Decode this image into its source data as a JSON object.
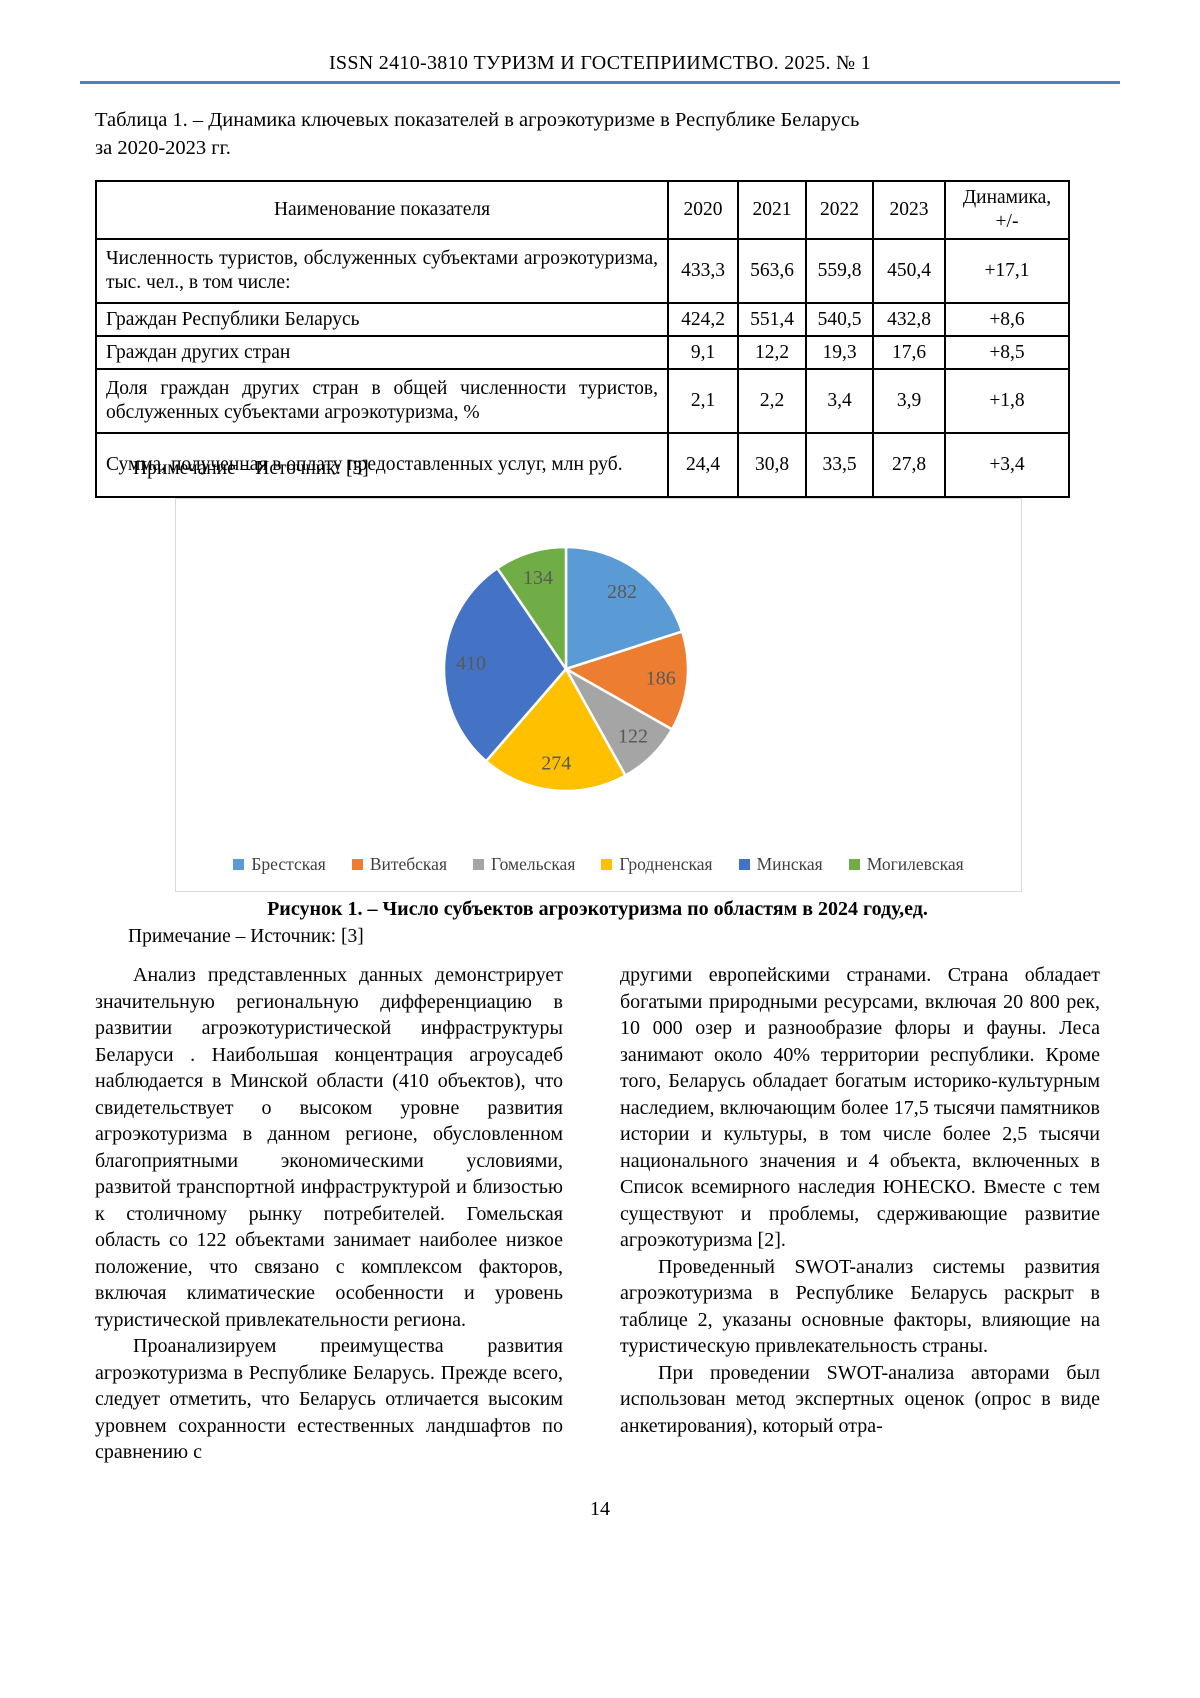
{
  "page": {
    "header": "ISSN 2410-3810 ТУРИЗМ И ГОСТЕПРИИМСТВО. 2025. № 1",
    "page_number": "14",
    "accent_rule_color": "#4F81BD"
  },
  "table": {
    "caption_line1": "Таблица 1. – Динамика ключевых показателей в агроэкотуризме в Республике Беларусь",
    "caption_line2": "за 2020-2023 гг.",
    "note": "Примечание – Источник: [3]",
    "col_headers": [
      "Наименование показателя",
      "2020",
      "2021",
      "2022",
      "2023",
      "Динамика, +/-"
    ],
    "rows": [
      {
        "name": "Численность туристов, обслуженных субъектами агроэкотуризма, тыс. чел., в том числе:",
        "v2020": "433,3",
        "v2021": "563,6",
        "v2022": "559,8",
        "v2023": "450,4",
        "dyn": "+17,1"
      },
      {
        "name": "Граждан Республики Беларусь",
        "v2020": "424,2",
        "v2021": "551,4",
        "v2022": "540,5",
        "v2023": "432,8",
        "dyn": "+8,6"
      },
      {
        "name": "Граждан других стран",
        "v2020": "9,1",
        "v2021": "12,2",
        "v2022": "19,3",
        "v2023": "17,6",
        "dyn": "+8,5"
      },
      {
        "name": "Доля граждан других стран в общей численности туристов, обслуженных субъектами агроэкотуризма, %",
        "v2020": "2,1",
        "v2021": "2,2",
        "v2022": "3,4",
        "v2023": "3,9",
        "dyn": "+1,8"
      },
      {
        "name": "Сумма, полученная в оплату предоставленных услуг, млн руб.",
        "v2020": "24,4",
        "v2021": "30,8",
        "v2022": "33,5",
        "v2023": "27,8",
        "dyn": "+3,4"
      }
    ]
  },
  "figure": {
    "caption": "Рисунок 1. – Число субъектов агроэкотуризма по областям в 2024 году,ед.",
    "note": "Примечание – Источник: [3]"
  },
  "chart_data": {
    "type": "pie",
    "title": "Число субъектов агроэкотуризма по областям в 2024 году, ед.",
    "categories": [
      "Брестская",
      "Витебская",
      "Гомельская",
      "Гродненская",
      "Минская",
      "Могилевская"
    ],
    "values": [
      282,
      186,
      122,
      274,
      410,
      134
    ],
    "data_labels": [
      "282",
      "186",
      "122",
      "274",
      "410",
      "134"
    ],
    "colors": [
      "#5B9BD5",
      "#ED7D31",
      "#A5A5A5",
      "#FFC000",
      "#4472C4",
      "#70AD47"
    ],
    "start_angle_deg": 0,
    "direction": "clockwise",
    "legend_position": "bottom",
    "label_color": "#595959",
    "slice_border_color": "#FFFFFF"
  },
  "body": {
    "left": [
      "Анализ представленных данных демонстрирует значительную региональную дифференциацию в развитии агроэкотуристической инфраструктуры Беларуси . Наибольшая концентрация агроусадеб наблюдается в Минской области (410 объектов), что свидетельствует о высоком уровне развития агроэкотуризма в данном регионе, обусловленном благоприятными экономическими условиями, развитой транспортной инфраструктурой и близостью к столичному рынку потребителей. Гомельская область со 122 объектами занимает наиболее низкое положение, что связано с комплексом факторов, включая климатические особенности и уровень туристической привлекательности региона.",
      "Проанализируем преимущества развития агроэкотуризма в Республике Беларусь. Прежде всего, следует отметить, что Беларусь отличается высоким уровнем сохранности естественных ландшафтов по сравнению с"
    ],
    "right": [
      "другими европейскими странами. Страна обладает богатыми природными ресурсами, включая 20 800 рек, 10 000 озер и разнообразие флоры и фауны. Леса занимают около 40% территории республики. Кроме того, Беларусь обладает богатым историко-культурным наследием, включающим более 17,5 тысячи памятников истории и культуры, в том числе более 2,5 тысячи национального значения и 4 объекта, включенных в Список всемирного наследия ЮНЕСКО. Вместе с тем существуют и проблемы, сдерживающие развитие агроэкотуризма [2].",
      "Проведенный SWOT-анализ системы развития агроэкотуризма в Республике Беларусь раскрыт в таблице 2, указаны основные факторы, влияющие на туристическую привлекательность страны.",
      "При проведении SWOT-анализа авторами был использован метод экспертных оценок (опрос в виде анкетирования), который отра-"
    ]
  }
}
